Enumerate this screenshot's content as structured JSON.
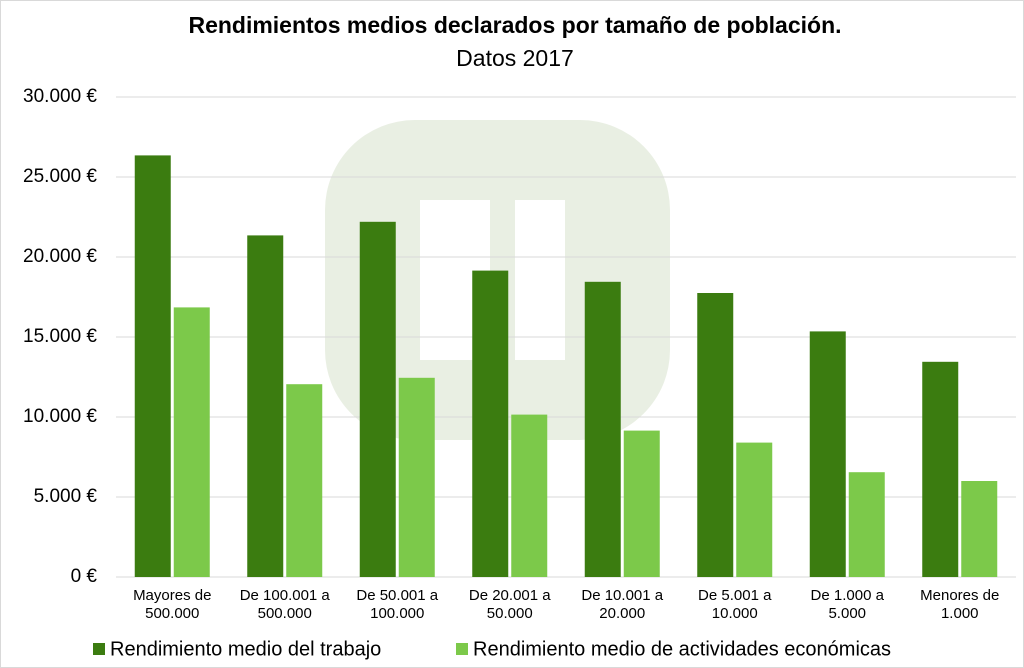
{
  "chart_data": {
    "type": "bar",
    "title": "Rendimientos medios declarados por tamaño de población.",
    "subtitle": "Datos 2017",
    "categories": [
      "Mayores de 500.000",
      "De 100.001 a 500.000",
      "De 50.001 a 100.000",
      "De 20.001 a 50.000",
      "De 10.001 a 20.000",
      "De 5.001 a 10.000",
      "De 1.000 a 5.000",
      "Menores de 1.000"
    ],
    "series": [
      {
        "name": "Rendimiento medio del trabajo",
        "color": "#3b7c10",
        "values": [
          26350,
          21350,
          22200,
          19150,
          18450,
          17750,
          15350,
          13450
        ]
      },
      {
        "name": "Rendimiento medio de actividades económicas",
        "color": "#7cc94a",
        "values": [
          16850,
          12050,
          12450,
          10150,
          9150,
          8400,
          6550,
          6000
        ]
      }
    ],
    "ylim": [
      0,
      30000
    ],
    "yticks": [
      {
        "value": 0,
        "label": "0 €"
      },
      {
        "value": 5000,
        "label": "5.000 €"
      },
      {
        "value": 10000,
        "label": "10.000 €"
      },
      {
        "value": 15000,
        "label": "15.000 €"
      },
      {
        "value": 20000,
        "label": "20.000 €"
      },
      {
        "value": 25000,
        "label": "25.000 €"
      },
      {
        "value": 30000,
        "label": "30.000 €"
      }
    ],
    "grid": true,
    "legend": "bottom"
  }
}
